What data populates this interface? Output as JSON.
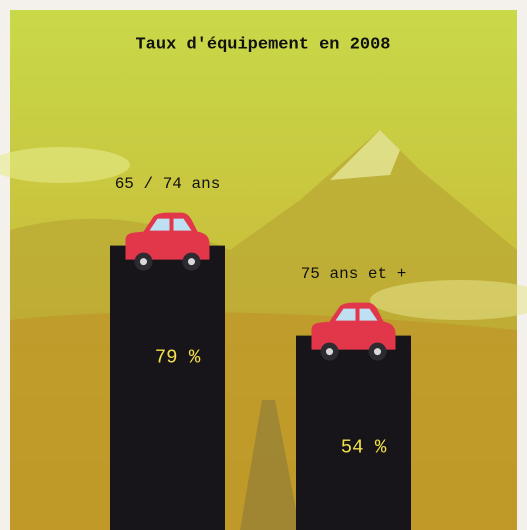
{
  "chart_data": {
    "type": "bar",
    "title": "Taux d'équipement en 2008",
    "categories": [
      "65 / 74 ans",
      "75 ans et +"
    ],
    "values": [
      79,
      54
    ],
    "value_labels": [
      "79 %",
      "54 %"
    ],
    "color": "#17151a"
  }
}
